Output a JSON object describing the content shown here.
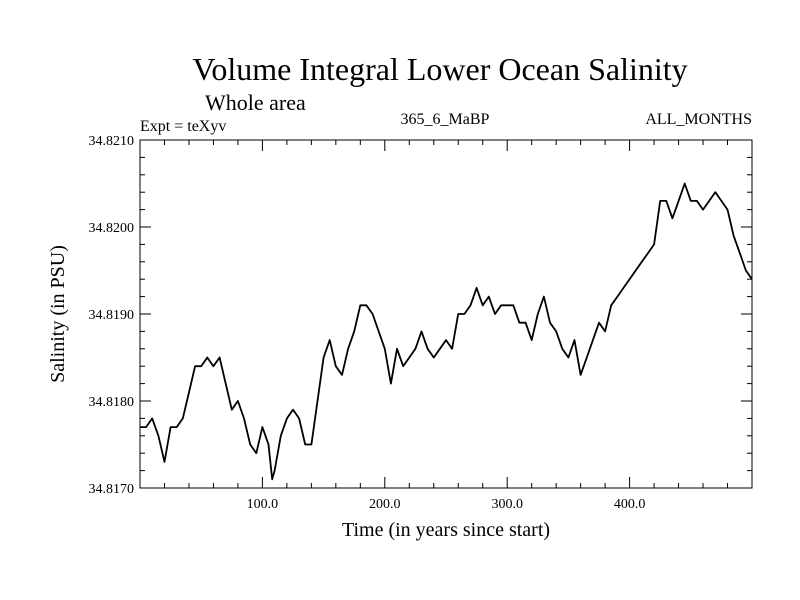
{
  "chart_data": {
    "type": "line",
    "title": "Volume Integral Lower Ocean Salinity",
    "subtitle": "Whole area",
    "annotations": {
      "left": "Expt = teXyv",
      "center": "365_6_MaBP",
      "right": "ALL_MONTHS"
    },
    "xlabel": "Time (in years since start)",
    "ylabel": "Salinity (in PSU)",
    "xlim": [
      0,
      500
    ],
    "ylim": [
      34.817,
      34.821
    ],
    "xticks": [
      100,
      200,
      300,
      400
    ],
    "xtick_labels": [
      "100.0",
      "200.0",
      "300.0",
      "400.0"
    ],
    "yticks": [
      34.817,
      34.818,
      34.819,
      34.82,
      34.821
    ],
    "ytick_labels": [
      "34.8170",
      "34.8180",
      "34.8190",
      "34.8200",
      "34.8210"
    ],
    "grid": false,
    "series": [
      {
        "color": "#000000",
        "x": [
          0,
          5,
          10,
          15,
          20,
          25,
          30,
          35,
          40,
          45,
          50,
          55,
          60,
          65,
          70,
          75,
          80,
          85,
          90,
          95,
          100,
          105,
          108,
          110,
          115,
          120,
          125,
          130,
          135,
          140,
          145,
          150,
          155,
          160,
          165,
          170,
          175,
          180,
          185,
          190,
          195,
          200,
          205,
          210,
          215,
          220,
          225,
          230,
          235,
          240,
          245,
          250,
          255,
          260,
          265,
          270,
          275,
          280,
          285,
          290,
          295,
          300,
          305,
          310,
          315,
          320,
          325,
          330,
          335,
          340,
          345,
          350,
          355,
          360,
          365,
          370,
          375,
          380,
          385,
          390,
          395,
          400,
          405,
          410,
          415,
          420,
          425,
          430,
          435,
          440,
          445,
          450,
          455,
          460,
          465,
          470,
          475,
          480,
          485,
          490,
          495,
          500
        ],
        "y": [
          34.8177,
          34.8177,
          34.8178,
          34.8176,
          34.8173,
          34.8177,
          34.8177,
          34.8178,
          34.8181,
          34.8184,
          34.8184,
          34.8185,
          34.8184,
          34.8185,
          34.8182,
          34.8179,
          34.818,
          34.8178,
          34.8175,
          34.8174,
          34.8177,
          34.8175,
          34.8171,
          34.8172,
          34.8176,
          34.8178,
          34.8179,
          34.8178,
          34.8175,
          34.8175,
          34.818,
          34.8185,
          34.8187,
          34.8184,
          34.8183,
          34.8186,
          34.8188,
          34.8191,
          34.8191,
          34.819,
          34.8188,
          34.8186,
          34.8182,
          34.8186,
          34.8184,
          34.8185,
          34.8186,
          34.8188,
          34.8186,
          34.8185,
          34.8186,
          34.8187,
          34.8186,
          34.819,
          34.819,
          34.8191,
          34.8193,
          34.8191,
          34.8192,
          34.819,
          34.8191,
          34.8191,
          34.8191,
          34.8189,
          34.8189,
          34.8187,
          34.819,
          34.8192,
          34.8189,
          34.8188,
          34.8186,
          34.8185,
          34.8187,
          34.8183,
          34.8185,
          34.8187,
          34.8189,
          34.8188,
          34.8191,
          34.8192,
          34.8193,
          34.8194,
          34.8195,
          34.8196,
          34.8197,
          34.8198,
          34.8203,
          34.8203,
          34.8201,
          34.8203,
          34.8205,
          34.8203,
          34.8203,
          34.8202,
          34.8203,
          34.8204,
          34.8203,
          34.8202,
          34.8199,
          34.8197,
          34.8195,
          34.8194
        ]
      }
    ]
  }
}
